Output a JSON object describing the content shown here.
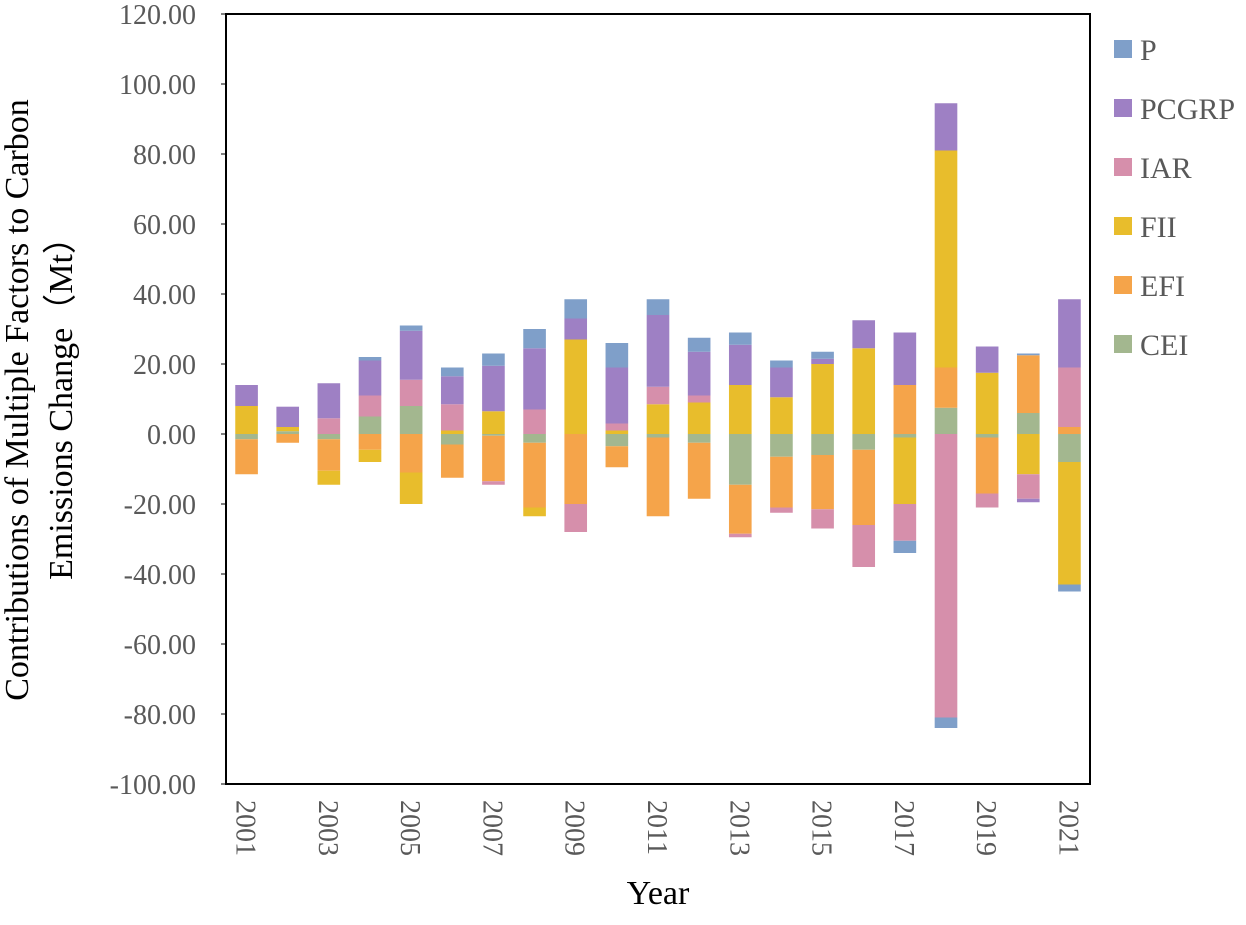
{
  "chart_data": {
    "type": "stacked-bar",
    "xlabel": "Year",
    "ylabel": [
      "Contributions of Multiple Factors to Carbon",
      "Emissions Change（Mt）"
    ],
    "categories": [
      "2001",
      null,
      "2003",
      null,
      "2005",
      null,
      "2007",
      null,
      "2009",
      null,
      "2011",
      null,
      "2013",
      null,
      "2015",
      null,
      "2017",
      null,
      "2019",
      null,
      "2021"
    ],
    "series": [
      {
        "name": "P",
        "color": "#7f9fc9",
        "values": [
          0,
          0,
          0,
          1,
          1.5,
          2.5,
          3.5,
          5.5,
          5.5,
          7,
          4.5,
          4,
          3.5,
          2,
          2,
          0,
          -3.5,
          -3,
          0,
          0.5,
          -2
        ]
      },
      {
        "name": "PCGRP",
        "color": "#9e80c4",
        "values": [
          6,
          5.8,
          10,
          10,
          14,
          8,
          13,
          17.5,
          6,
          16,
          20.5,
          12.5,
          11.5,
          8.5,
          1.5,
          8,
          15,
          13.5,
          7.5,
          -1,
          19.5
        ]
      },
      {
        "name": "IAR",
        "color": "#d68fab",
        "values": [
          0,
          0,
          4.5,
          6,
          7.5,
          7.5,
          -1,
          7,
          -8,
          2,
          5,
          2,
          -1,
          -1.5,
          -5.5,
          -12,
          -10.5,
          -81,
          -4,
          -7,
          17
        ]
      },
      {
        "name": "FII",
        "color": "#e8bd2c",
        "values": [
          8,
          1.2,
          -4,
          -3.5,
          -9,
          1,
          6.5,
          -2.5,
          27,
          1,
          8.5,
          9,
          14,
          10.5,
          20,
          24.5,
          -19,
          62,
          17.5,
          -11.5,
          -35
        ]
      },
      {
        "name": "EFI",
        "color": "#f5a44a",
        "values": [
          -10,
          -2.5,
          -9,
          -4.5,
          -11,
          -9.5,
          -13,
          -18.5,
          -20,
          -6,
          -22.5,
          -16,
          -14,
          -14.5,
          -15.5,
          -21.5,
          14,
          11.5,
          -16,
          16.5,
          2
        ]
      },
      {
        "name": "CEI",
        "color": "#a3b78f",
        "values": [
          -1.5,
          0.8,
          -1.5,
          5,
          8,
          -3,
          -0.5,
          -2.5,
          0,
          -3.5,
          -1,
          -2.5,
          -14.5,
          -6.5,
          -6,
          -4.5,
          -1,
          7.5,
          -1,
          6,
          -8
        ]
      }
    ],
    "ylim": [
      -100,
      120
    ],
    "yticks": [
      {
        "value": -100,
        "label": "-100.00"
      },
      {
        "value": -80,
        "label": "-80.00"
      },
      {
        "value": -60,
        "label": "-60.00"
      },
      {
        "value": -40,
        "label": "-40.00"
      },
      {
        "value": -20,
        "label": "-20.00"
      },
      {
        "value": 0,
        "label": "0.00"
      },
      {
        "value": 20,
        "label": "20.00"
      },
      {
        "value": 40,
        "label": "40.00"
      },
      {
        "value": 60,
        "label": "60.00"
      },
      {
        "value": 80,
        "label": "80.00"
      },
      {
        "value": 100,
        "label": "100.00"
      },
      {
        "value": 120,
        "label": "120.00"
      }
    ],
    "grid": false,
    "legend": "right"
  }
}
